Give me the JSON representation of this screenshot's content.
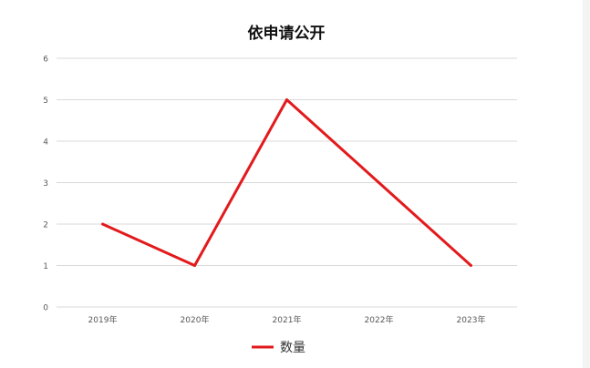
{
  "chart_data": {
    "type": "line",
    "title": "依申请公开",
    "categories": [
      "2019年",
      "2020年",
      "2021年",
      "2022年",
      "2023年"
    ],
    "series": [
      {
        "name": "数量",
        "values": [
          2,
          1,
          5,
          3,
          1
        ],
        "color": "#e31a1c"
      }
    ],
    "ylim": [
      0,
      6
    ],
    "yticks": [
      "0",
      "1",
      "2",
      "3",
      "4",
      "5",
      "6"
    ],
    "grid": true,
    "legend": "bottom"
  }
}
